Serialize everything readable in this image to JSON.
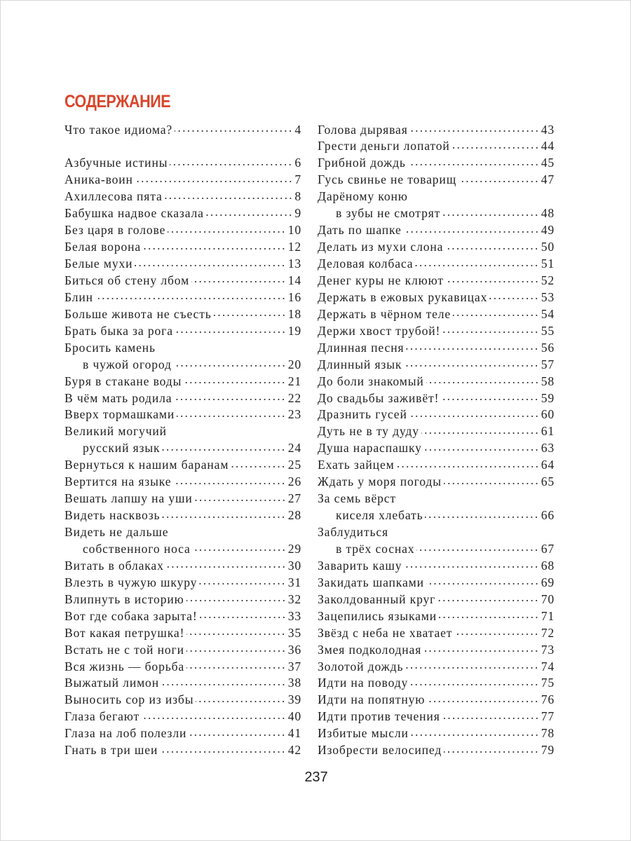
{
  "heading": "СОДЕРЖАНИЕ",
  "page_number": "237",
  "left_column": [
    {
      "text": "Что такое идиома?",
      "page": "4"
    },
    {
      "text": "",
      "page": ""
    },
    {
      "text": "Азбучные истины",
      "page": "6"
    },
    {
      "text": "Аника-воин",
      "page": "7"
    },
    {
      "text": "Ахиллесова пята",
      "page": "8"
    },
    {
      "text": "Бабушка надвое сказала",
      "page": "9"
    },
    {
      "text": "Без царя в голове",
      "page": "10"
    },
    {
      "text": "Белая ворона",
      "page": "12"
    },
    {
      "text": "Белые мухи",
      "page": "13"
    },
    {
      "text": "Биться об стену лбом",
      "page": "14"
    },
    {
      "text": "Блин",
      "page": "16"
    },
    {
      "text": "Больше живота не съесть",
      "page": "18"
    },
    {
      "text": "Брать быка за рога",
      "page": "19"
    },
    {
      "text": "Бросить камень",
      "page": ""
    },
    {
      "text": "в чужой огород",
      "page": "20",
      "indent": true
    },
    {
      "text": "Буря в стакане воды",
      "page": "21"
    },
    {
      "text": "В чём мать родила",
      "page": "22"
    },
    {
      "text": "Вверх тормашками",
      "page": "23"
    },
    {
      "text": "Великий могучий",
      "page": ""
    },
    {
      "text": "русский язык",
      "page": "24",
      "indent": true
    },
    {
      "text": "Вернуться к нашим баранам",
      "page": "25"
    },
    {
      "text": "Вертится на языке",
      "page": "26"
    },
    {
      "text": "Вешать лапшу на уши",
      "page": "27"
    },
    {
      "text": "Видеть насквозь",
      "page": "28"
    },
    {
      "text": "Видеть не дальше",
      "page": ""
    },
    {
      "text": "собственного носа",
      "page": "29",
      "indent": true
    },
    {
      "text": "Витать в облаках",
      "page": "30"
    },
    {
      "text": "Влезть в чужую шкуру",
      "page": "31"
    },
    {
      "text": "Влипнуть в историю",
      "page": "32"
    },
    {
      "text": "Вот где собака зарыта!",
      "page": "33"
    },
    {
      "text": "Вот какая петрушка!",
      "page": "35"
    },
    {
      "text": "Встать не с той ноги",
      "page": "36"
    },
    {
      "text": "Вся жизнь — борьба",
      "page": "37"
    },
    {
      "text": "Выжатый лимон",
      "page": "38"
    },
    {
      "text": "Выносить сор из избы",
      "page": "39"
    },
    {
      "text": "Глаза бегают",
      "page": "40"
    },
    {
      "text": "Глаза на лоб полезли",
      "page": "41"
    },
    {
      "text": "Гнать в три шеи",
      "page": "42"
    }
  ],
  "right_column": [
    {
      "text": "Голова дырявая",
      "page": "43"
    },
    {
      "text": "Грести деньги лопатой",
      "page": "44"
    },
    {
      "text": "Грибной дождь",
      "page": "45"
    },
    {
      "text": "Гусь свинье не товарищ",
      "page": "47"
    },
    {
      "text": "Дарёному коню",
      "page": ""
    },
    {
      "text": "в зубы не смотрят",
      "page": "48",
      "indent": true
    },
    {
      "text": "Дать по шапке",
      "page": "49"
    },
    {
      "text": "Делать из мухи слона",
      "page": "50"
    },
    {
      "text": "Деловая колбаса",
      "page": "51"
    },
    {
      "text": "Денег куры не клюют",
      "page": "52"
    },
    {
      "text": "Держать в ежовых рукавицах",
      "page": "53"
    },
    {
      "text": "Держать в чёрном теле",
      "page": "54"
    },
    {
      "text": "Держи хвост трубой!",
      "page": "55"
    },
    {
      "text": "Длинная песня",
      "page": "56"
    },
    {
      "text": "Длинный язык",
      "page": "57"
    },
    {
      "text": "До боли знакомый",
      "page": "58"
    },
    {
      "text": "До свадьбы заживёт!",
      "page": "59"
    },
    {
      "text": "Дразнить гусей",
      "page": "60"
    },
    {
      "text": "Дуть не в ту дуду",
      "page": "61"
    },
    {
      "text": "Душа нараспашку",
      "page": "63"
    },
    {
      "text": "Ехать зайцем",
      "page": "64"
    },
    {
      "text": "Ждать у моря погоды",
      "page": "65"
    },
    {
      "text": "За семь вёрст",
      "page": ""
    },
    {
      "text": "киселя хлебать",
      "page": "66",
      "indent": true
    },
    {
      "text": "Заблудиться",
      "page": ""
    },
    {
      "text": "в трёх соснах",
      "page": "67",
      "indent": true
    },
    {
      "text": "Заварить кашу",
      "page": "68"
    },
    {
      "text": "Закидать шапками",
      "page": "69"
    },
    {
      "text": "Заколдованный круг",
      "page": "70"
    },
    {
      "text": "Зацепились языками",
      "page": "71"
    },
    {
      "text": "Звёзд с неба не хватает",
      "page": "72"
    },
    {
      "text": "Змея подколодная",
      "page": "73"
    },
    {
      "text": "Золотой дождь",
      "page": "74"
    },
    {
      "text": "Идти на поводу",
      "page": "75"
    },
    {
      "text": "Идти на попятную",
      "page": "76"
    },
    {
      "text": "Идти против течения",
      "page": "77"
    },
    {
      "text": "Избитые мысли",
      "page": "78"
    },
    {
      "text": "Изобрести велосипед",
      "page": "79"
    }
  ],
  "colors": {
    "heading": "#d9452b",
    "text": "#222222"
  }
}
